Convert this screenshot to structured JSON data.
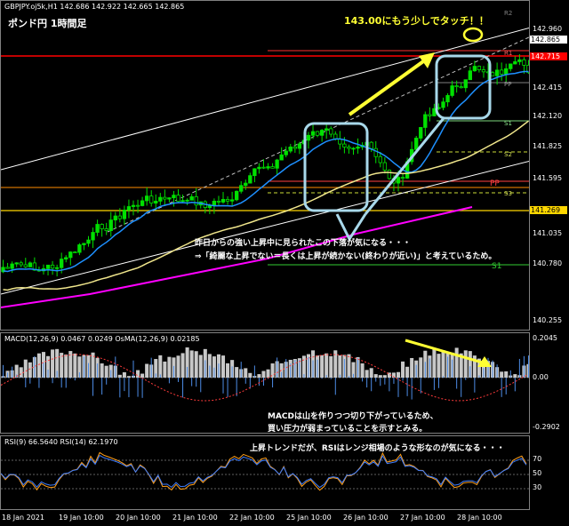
{
  "header": {
    "symbol_line": "GBPJPY.oj5k,H1  142.686 142.922 142.665 142.865",
    "subtitle": "ポンド円 1時間足"
  },
  "annotations": {
    "touch": "143.00にもう少しでタッチ！！",
    "fall_note_1": "昨日からの強い上昇中に見られたこの下落が気になる・・・",
    "fall_note_2": "⇒「綺麗な上昇でない＝長くは上昇が続かない(終わりが近い)」と考えているため。",
    "macd_note_1": "MACDは山を作りつつ切り下がっているため、",
    "macd_note_2": "買い圧力が弱まっていることを示すとみる。",
    "rsi_note": "上昇トレンドだが、RSIはレンジ相場のような形なのが気になる・・・"
  },
  "price_axis": {
    "ticks": [
      "142.960",
      "142.415",
      "142.120",
      "141.825",
      "141.595",
      "141.035",
      "140.780",
      "140.255"
    ],
    "current_price": "142.865",
    "red_level": "142.715",
    "yellow_level": "141.269",
    "colors": {
      "current_bg": "#ffffff",
      "red_bg": "#ff0000",
      "yellow_bg": "#ffd700"
    }
  },
  "pivot_labels": {
    "r2": "R2",
    "r1": "R1",
    "pp_upper": "PP",
    "s1_upper": "S1",
    "s2": "S2",
    "pp_lower": "PP",
    "s3": "S3",
    "s1_lower": "S1"
  },
  "macd": {
    "label": "MACD(12,26,9) 0.0467 0.0249  OsMA(12,26,9) 0.02185",
    "ticks": [
      "0.2045",
      "0.00",
      "-0.2902"
    ]
  },
  "rsi": {
    "label": "RSI(9) 66.5640  RSI(14) 62.1970",
    "ticks": [
      "70",
      "50",
      "30"
    ]
  },
  "time_axis": [
    "18 Jan 2021",
    "19 Jan 10:00",
    "20 Jan 10:00",
    "21 Jan 10:00",
    "22 Jan 10:00",
    "25 Jan 10:00",
    "26 Jan 10:00",
    "27 Jan 10:00",
    "28 Jan 10:00"
  ],
  "colors": {
    "candle_up": "#00e000",
    "ma_fast": "#1e90ff",
    "ma_mid": "#f0e68c",
    "ma_slow": "#ff00ff",
    "macd_hist": "#4d8ce6",
    "macd_signal": "#ff3b3b",
    "rsi_fast": "#ff9f1a",
    "rsi_slow": "#3d7dff",
    "highlight": "#a8d8ea",
    "arrow": "#ffff33"
  }
}
